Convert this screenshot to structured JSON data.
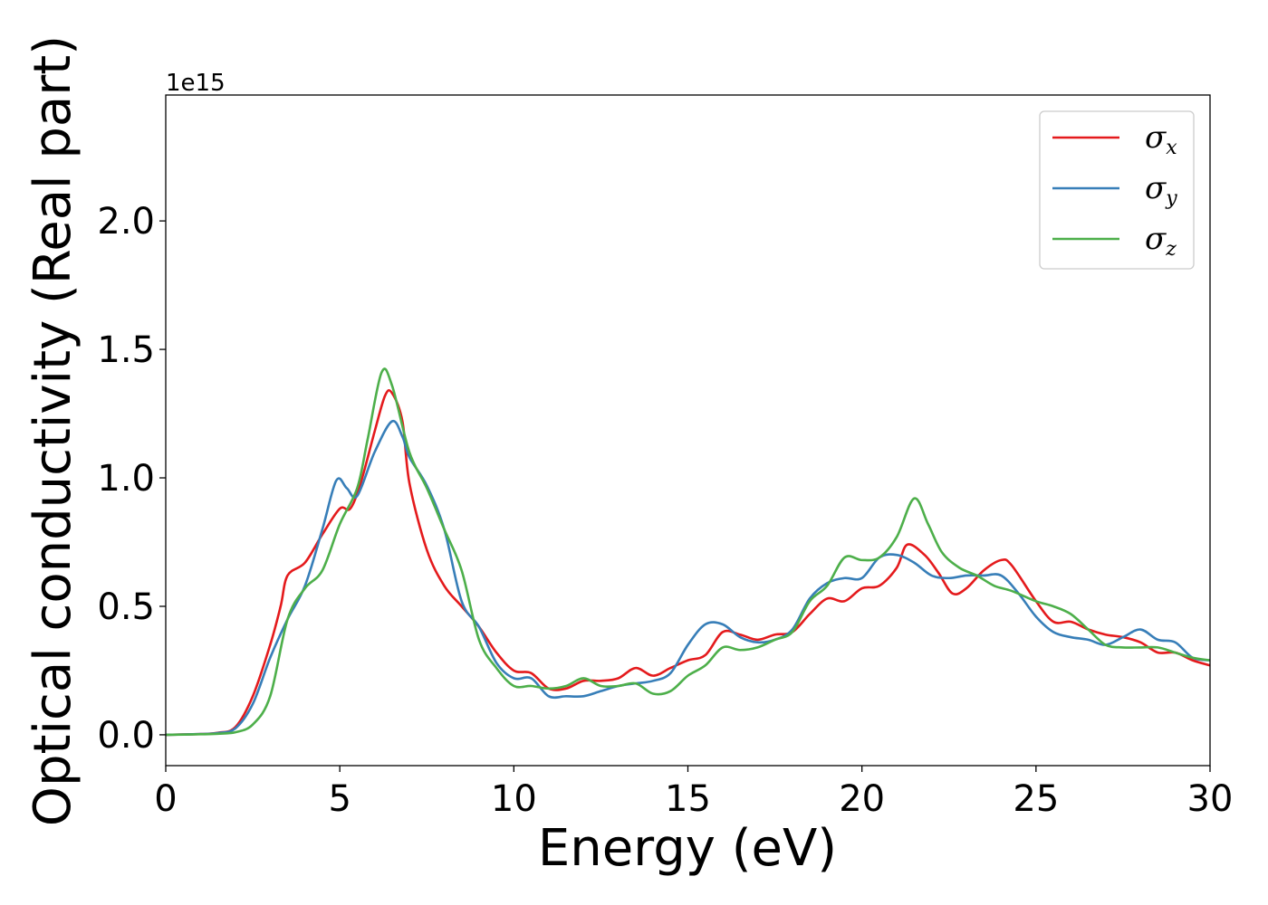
{
  "chart_data": {
    "type": "line",
    "xlabel": "Energy (eV)",
    "ylabel": "Optical conductivity (Real part)",
    "y_offset_label": "1e15",
    "xlim": [
      0,
      30
    ],
    "ylim": [
      -0.12,
      2.49
    ],
    "x_ticks": [
      0,
      5,
      10,
      15,
      20,
      25,
      30
    ],
    "x_tick_labels": [
      "0",
      "5",
      "10",
      "15",
      "20",
      "25",
      "30"
    ],
    "y_ticks": [
      0.0,
      0.5,
      1.0,
      1.5,
      2.0
    ],
    "y_tick_labels": [
      "0.0",
      "0.5",
      "1.0",
      "1.5",
      "2.0"
    ],
    "grid": false,
    "legend_position": "top-right",
    "series": [
      {
        "name": "σx",
        "symbol": "σ",
        "subscript": "x",
        "color": "#e41a1c",
        "points": [
          [
            0,
            0
          ],
          [
            1,
            0.003
          ],
          [
            1.5,
            0.008
          ],
          [
            2,
            0.03
          ],
          [
            2.5,
            0.15
          ],
          [
            3,
            0.35
          ],
          [
            3.3,
            0.5
          ],
          [
            3.5,
            0.62
          ],
          [
            4,
            0.67
          ],
          [
            4.5,
            0.78
          ],
          [
            5,
            0.88
          ],
          [
            5.3,
            0.88
          ],
          [
            5.6,
            0.98
          ],
          [
            6,
            1.18
          ],
          [
            6.3,
            1.32
          ],
          [
            6.5,
            1.33
          ],
          [
            6.8,
            1.22
          ],
          [
            7,
            0.98
          ],
          [
            7.5,
            0.72
          ],
          [
            8,
            0.58
          ],
          [
            8.5,
            0.5
          ],
          [
            9,
            0.42
          ],
          [
            9.5,
            0.32
          ],
          [
            10,
            0.25
          ],
          [
            10.5,
            0.24
          ],
          [
            11,
            0.18
          ],
          [
            11.5,
            0.18
          ],
          [
            12,
            0.21
          ],
          [
            12.5,
            0.21
          ],
          [
            13,
            0.22
          ],
          [
            13.5,
            0.26
          ],
          [
            14,
            0.23
          ],
          [
            14.5,
            0.26
          ],
          [
            15,
            0.29
          ],
          [
            15.5,
            0.31
          ],
          [
            16,
            0.4
          ],
          [
            16.5,
            0.39
          ],
          [
            17,
            0.37
          ],
          [
            17.5,
            0.39
          ],
          [
            18,
            0.4
          ],
          [
            18.5,
            0.47
          ],
          [
            19,
            0.53
          ],
          [
            19.5,
            0.52
          ],
          [
            20,
            0.57
          ],
          [
            20.5,
            0.58
          ],
          [
            21,
            0.65
          ],
          [
            21.3,
            0.74
          ],
          [
            21.8,
            0.7
          ],
          [
            22.2,
            0.63
          ],
          [
            22.6,
            0.55
          ],
          [
            23,
            0.57
          ],
          [
            23.5,
            0.64
          ],
          [
            24,
            0.68
          ],
          [
            24.3,
            0.66
          ],
          [
            25,
            0.52
          ],
          [
            25.5,
            0.44
          ],
          [
            26,
            0.44
          ],
          [
            26.5,
            0.41
          ],
          [
            27,
            0.39
          ],
          [
            27.5,
            0.38
          ],
          [
            28,
            0.36
          ],
          [
            28.5,
            0.32
          ],
          [
            29,
            0.32
          ],
          [
            29.5,
            0.29
          ],
          [
            30,
            0.27
          ]
        ]
      },
      {
        "name": "σy",
        "symbol": "σ",
        "subscript": "y",
        "color": "#377eb8",
        "points": [
          [
            0,
            0
          ],
          [
            1,
            0.003
          ],
          [
            1.5,
            0.007
          ],
          [
            2,
            0.025
          ],
          [
            2.5,
            0.12
          ],
          [
            3,
            0.3
          ],
          [
            3.5,
            0.45
          ],
          [
            4,
            0.58
          ],
          [
            4.5,
            0.8
          ],
          [
            4.9,
            0.99
          ],
          [
            5.2,
            0.96
          ],
          [
            5.5,
            0.93
          ],
          [
            6,
            1.1
          ],
          [
            6.5,
            1.22
          ],
          [
            6.8,
            1.16
          ],
          [
            7,
            1.08
          ],
          [
            7.5,
            0.97
          ],
          [
            8,
            0.8
          ],
          [
            8.5,
            0.52
          ],
          [
            9,
            0.42
          ],
          [
            9.5,
            0.28
          ],
          [
            10,
            0.22
          ],
          [
            10.5,
            0.22
          ],
          [
            11,
            0.15
          ],
          [
            11.5,
            0.15
          ],
          [
            12,
            0.15
          ],
          [
            12.5,
            0.17
          ],
          [
            13,
            0.19
          ],
          [
            13.5,
            0.2
          ],
          [
            14,
            0.21
          ],
          [
            14.5,
            0.24
          ],
          [
            15,
            0.35
          ],
          [
            15.5,
            0.43
          ],
          [
            16,
            0.43
          ],
          [
            16.5,
            0.38
          ],
          [
            17,
            0.36
          ],
          [
            17.5,
            0.37
          ],
          [
            18,
            0.41
          ],
          [
            18.5,
            0.53
          ],
          [
            19,
            0.59
          ],
          [
            19.5,
            0.61
          ],
          [
            20,
            0.61
          ],
          [
            20.5,
            0.69
          ],
          [
            21,
            0.7
          ],
          [
            21.5,
            0.67
          ],
          [
            22,
            0.62
          ],
          [
            22.5,
            0.61
          ],
          [
            23,
            0.62
          ],
          [
            23.5,
            0.62
          ],
          [
            24,
            0.62
          ],
          [
            24.5,
            0.55
          ],
          [
            25,
            0.46
          ],
          [
            25.5,
            0.4
          ],
          [
            26,
            0.38
          ],
          [
            26.5,
            0.37
          ],
          [
            27,
            0.35
          ],
          [
            27.5,
            0.38
          ],
          [
            28,
            0.41
          ],
          [
            28.5,
            0.37
          ],
          [
            29,
            0.36
          ],
          [
            29.5,
            0.3
          ],
          [
            30,
            0.29
          ]
        ]
      },
      {
        "name": "σz",
        "symbol": "σ",
        "subscript": "z",
        "color": "#4daf4a",
        "points": [
          [
            0,
            0
          ],
          [
            1,
            0.002
          ],
          [
            1.5,
            0.004
          ],
          [
            2,
            0.01
          ],
          [
            2.5,
            0.04
          ],
          [
            3,
            0.15
          ],
          [
            3.5,
            0.45
          ],
          [
            4,
            0.57
          ],
          [
            4.5,
            0.64
          ],
          [
            5,
            0.82
          ],
          [
            5.5,
            0.96
          ],
          [
            5.8,
            1.15
          ],
          [
            6.2,
            1.41
          ],
          [
            6.5,
            1.36
          ],
          [
            7,
            1.1
          ],
          [
            7.5,
            0.96
          ],
          [
            8,
            0.8
          ],
          [
            8.5,
            0.64
          ],
          [
            9,
            0.37
          ],
          [
            9.5,
            0.26
          ],
          [
            10,
            0.19
          ],
          [
            10.5,
            0.19
          ],
          [
            11,
            0.18
          ],
          [
            11.5,
            0.19
          ],
          [
            12,
            0.22
          ],
          [
            12.5,
            0.19
          ],
          [
            13,
            0.19
          ],
          [
            13.5,
            0.2
          ],
          [
            14,
            0.16
          ],
          [
            14.5,
            0.17
          ],
          [
            15,
            0.23
          ],
          [
            15.5,
            0.27
          ],
          [
            16,
            0.34
          ],
          [
            16.5,
            0.33
          ],
          [
            17,
            0.34
          ],
          [
            17.5,
            0.37
          ],
          [
            18,
            0.4
          ],
          [
            18.5,
            0.52
          ],
          [
            19,
            0.58
          ],
          [
            19.5,
            0.69
          ],
          [
            20,
            0.68
          ],
          [
            20.5,
            0.69
          ],
          [
            21,
            0.77
          ],
          [
            21.5,
            0.92
          ],
          [
            21.9,
            0.82
          ],
          [
            22.3,
            0.71
          ],
          [
            22.8,
            0.65
          ],
          [
            23.3,
            0.62
          ],
          [
            23.8,
            0.58
          ],
          [
            24.3,
            0.56
          ],
          [
            25,
            0.52
          ],
          [
            25.5,
            0.5
          ],
          [
            26,
            0.47
          ],
          [
            26.5,
            0.41
          ],
          [
            27,
            0.35
          ],
          [
            27.5,
            0.34
          ],
          [
            28,
            0.34
          ],
          [
            28.5,
            0.34
          ],
          [
            29,
            0.32
          ],
          [
            29.5,
            0.3
          ],
          [
            30,
            0.29
          ]
        ]
      }
    ]
  }
}
